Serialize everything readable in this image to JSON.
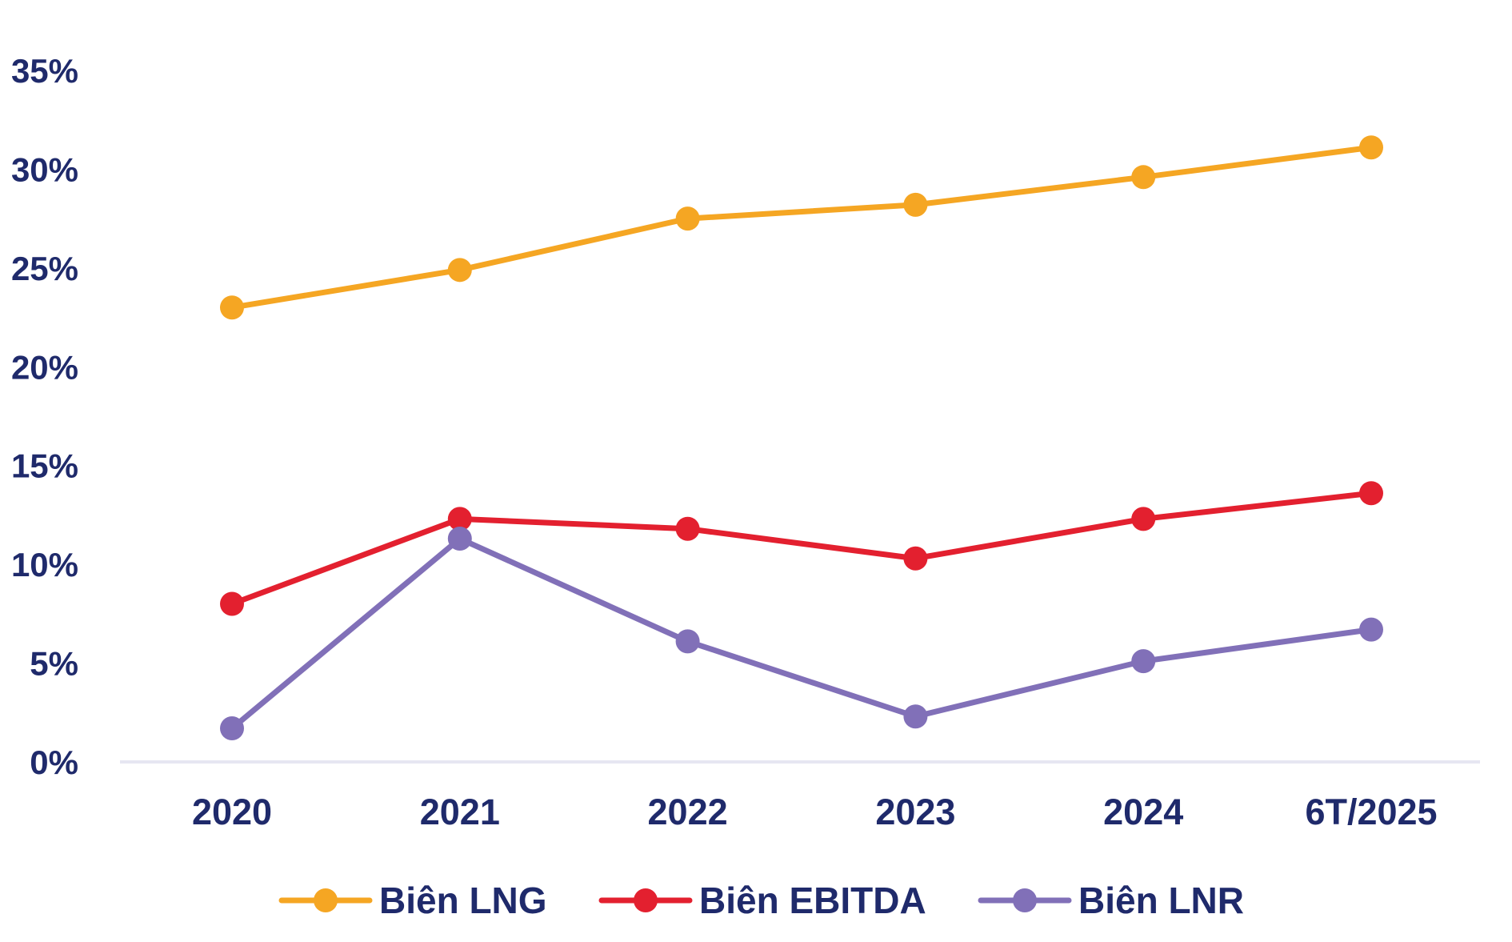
{
  "chart_data": {
    "type": "line",
    "title": "",
    "xlabel": "",
    "ylabel": "",
    "categories": [
      "2020",
      "2021",
      "2022",
      "2023",
      "2024",
      "6T/2025"
    ],
    "ylim": [
      0,
      35
    ],
    "yticks": [
      0,
      5,
      10,
      15,
      20,
      25,
      30,
      35
    ],
    "ytick_labels": [
      "0%",
      "5%",
      "10%",
      "15%",
      "20%",
      "25%",
      "30%",
      "35%"
    ],
    "grid": false,
    "legend_position": "bottom",
    "series": [
      {
        "name": "Biên LNG",
        "color": "#f5a623",
        "values": [
          23.0,
          24.9,
          27.5,
          28.2,
          29.6,
          31.1
        ]
      },
      {
        "name": "Biên EBITDA",
        "color": "#e3202f",
        "values": [
          8.0,
          12.3,
          11.8,
          10.3,
          12.3,
          13.6
        ]
      },
      {
        "name": "Biên LNR",
        "color": "#8170b8",
        "values": [
          1.7,
          11.3,
          6.1,
          2.3,
          5.1,
          6.7
        ]
      }
    ],
    "axis_color": "#e6e6f2",
    "text_color": "#1f2a6b"
  }
}
